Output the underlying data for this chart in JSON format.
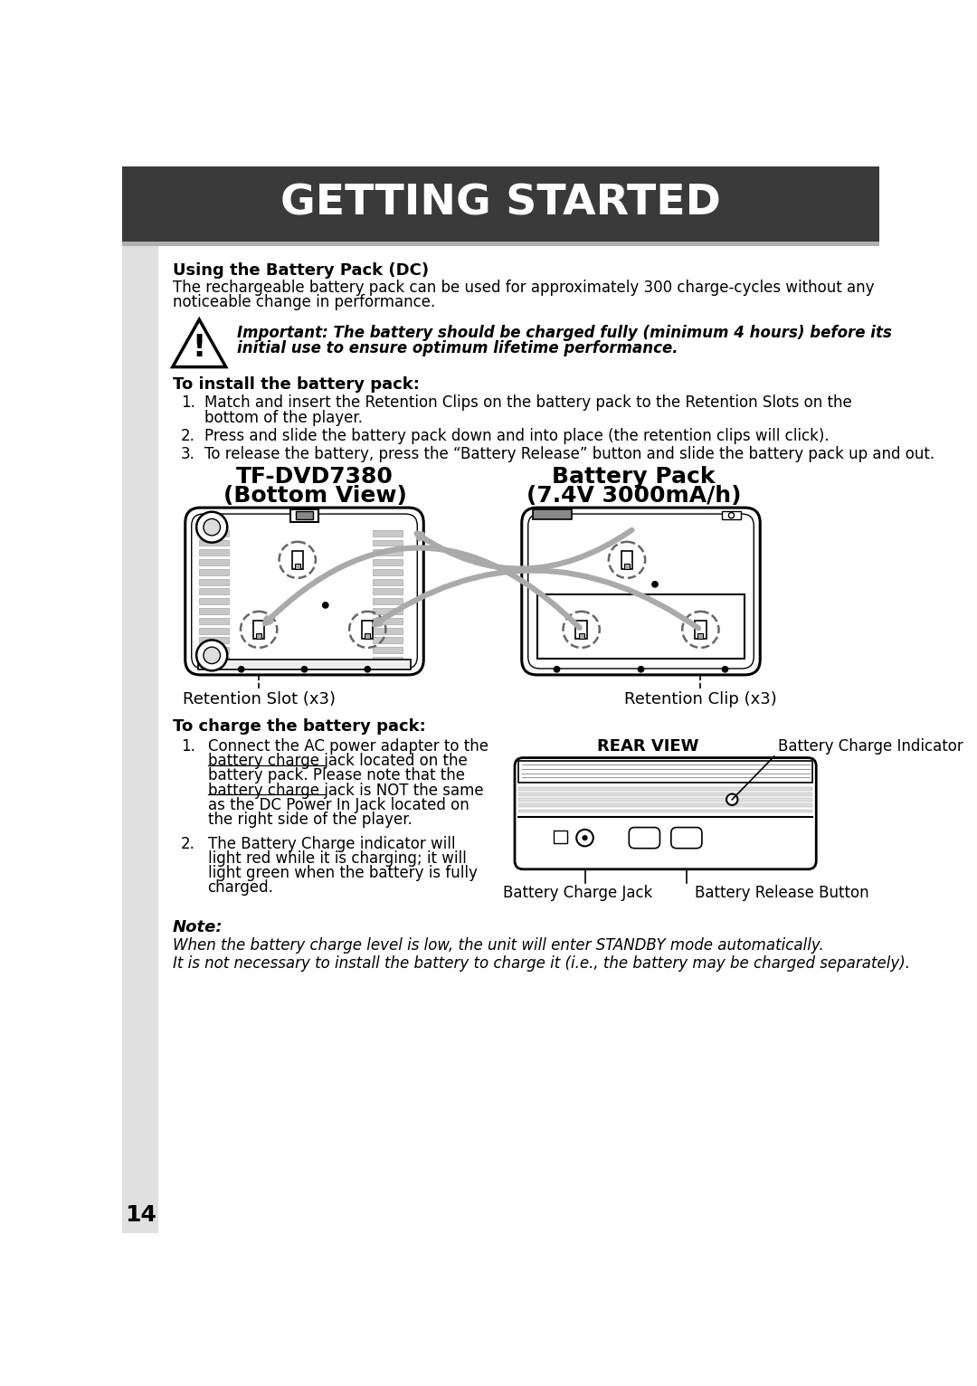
{
  "title": "GETTING STARTED",
  "header_bg": "#3a3a3a",
  "header_text_color": "#ffffff",
  "page_bg": "#ffffff",
  "page_number": "14",
  "section1_heading": "Using the Battery Pack (DC)",
  "section1_line1": "The rechargeable battery pack can be used for approximately 300 charge-cycles without any",
  "section1_line2": "noticeable change in performance.",
  "important_line1": "Important: The battery should be charged fully (minimum 4 hours) before its",
  "important_line2": "initial use to ensure optimum lifetime performance.",
  "install_heading": "To install the battery pack:",
  "install_item1_line1": "Match and insert the Retention Clips on the battery pack to the Retention Slots on the",
  "install_item1_line2": "bottom of the player.",
  "install_item2": "Press and slide the battery pack down and into place (the retention clips will click).",
  "install_item3": "To release the battery, press the “Battery Release” button and slide the battery pack up and out.",
  "diagram_label1a": "TF-DVD7380",
  "diagram_label1b": "(Bottom View)",
  "diagram_label2a": "Battery Pack",
  "diagram_label2b": "(7.4V 3000mA/h)",
  "retention_slot_label": "Retention Slot (x3)",
  "retention_clip_label": "Retention Clip (x3)",
  "charge_heading": "To charge the battery pack:",
  "charge_item1_lines": [
    "Connect the AC power adapter to the",
    "battery charge jack located on the",
    "battery pack. Please note that the",
    "battery charge jack is NOT the same",
    "as the DC Power In Jack located on",
    "the right side of the player."
  ],
  "charge_item2_lines": [
    "The Battery Charge indicator will",
    "light red while it is charging; it will",
    "light green when the battery is fully",
    "charged."
  ],
  "rear_view_label": "REAR VIEW",
  "bci_label": "Battery Charge Indicator",
  "bcj_label": "Battery Charge Jack",
  "brb_label": "Battery Release Button",
  "note_heading": "Note:",
  "note_line1": "When the battery charge level is low, the unit will enter STANDBY mode automatically.",
  "note_line2": "It is not necessary to install the battery to charge it (i.e., the battery may be charged separately)."
}
